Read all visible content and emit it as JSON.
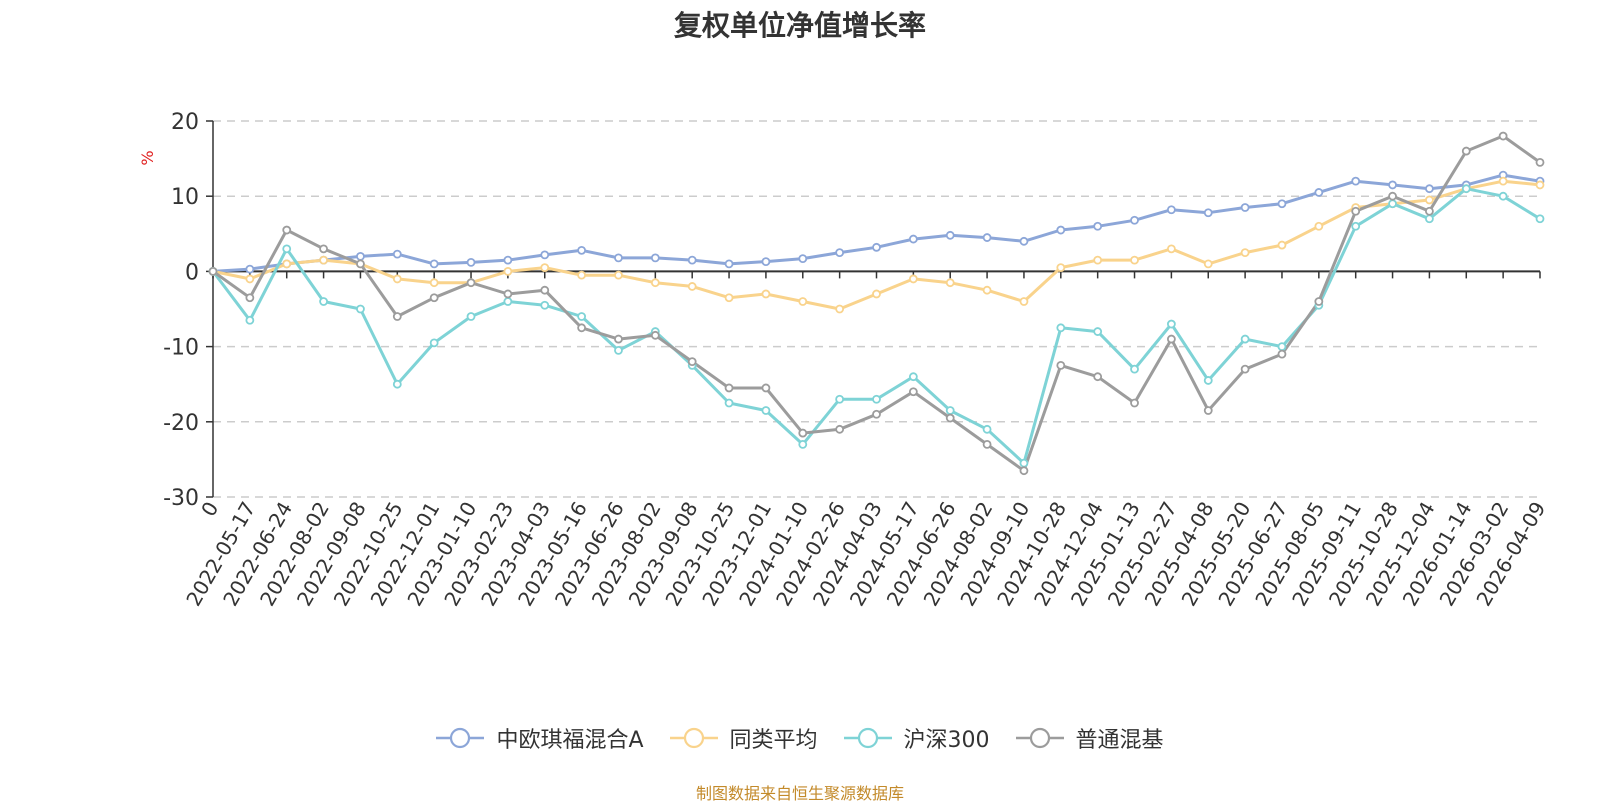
{
  "chart_data": {
    "type": "line",
    "title": "复权单位净值增长率",
    "ylabel": "%",
    "ylim": [
      -30,
      20
    ],
    "yticks": [
      -30,
      -20,
      -10,
      0,
      10,
      20
    ],
    "categories": [
      "0",
      "2022-05-17",
      "2022-06-24",
      "2022-08-02",
      "2022-09-08",
      "2022-10-25",
      "2022-12-01",
      "2023-01-10",
      "2023-02-23",
      "2023-04-03",
      "2023-05-16",
      "2023-06-26",
      "2023-08-02",
      "2023-09-08",
      "2023-10-25",
      "2023-12-01",
      "2024-01-10",
      "2024-02-26",
      "2024-04-03",
      "2024-05-17",
      "2024-06-26",
      "2024-08-02",
      "2024-09-10",
      "2024-10-28",
      "2024-12-04",
      "2025-01-13",
      "2025-02-27",
      "2025-04-08",
      "2025-05-20",
      "2025-06-27",
      "2025-08-05",
      "2025-09-11",
      "2025-10-28",
      "2025-12-04",
      "2026-01-14",
      "2026-03-02",
      "2026-04-09"
    ],
    "series": [
      {
        "name": "中欧琪福混合A",
        "color": "#8ca6d8",
        "values": [
          0,
          0.3,
          1.0,
          1.5,
          2.0,
          2.3,
          1.0,
          1.2,
          1.5,
          2.2,
          2.8,
          1.8,
          1.8,
          1.5,
          1.0,
          1.3,
          1.7,
          2.5,
          3.2,
          4.3,
          4.8,
          4.5,
          4.0,
          5.5,
          6.0,
          6.8,
          8.2,
          7.8,
          8.5,
          9.0,
          10.5,
          12.0,
          11.5,
          11.0,
          11.5,
          12.8,
          12.0
        ]
      },
      {
        "name": "同类平均",
        "color": "#f9d38c",
        "values": [
          0,
          -1.0,
          1.0,
          1.5,
          1.0,
          -1.0,
          -1.5,
          -1.5,
          0,
          0.5,
          -0.5,
          -0.5,
          -1.5,
          -2.0,
          -3.5,
          -3.0,
          -4.0,
          -5.0,
          -3.0,
          -1.0,
          -1.5,
          -2.5,
          -4.0,
          0.5,
          1.5,
          1.5,
          3.0,
          1.0,
          2.5,
          3.5,
          6.0,
          8.5,
          9.0,
          9.5,
          11.0,
          12.0,
          11.5
        ]
      },
      {
        "name": "沪深300",
        "color": "#7ed3d6",
        "values": [
          0,
          -6.5,
          3.0,
          -4.0,
          -5.0,
          -15.0,
          -9.5,
          -6.0,
          -4.0,
          -4.5,
          -6.0,
          -10.5,
          -8.0,
          -12.5,
          -17.5,
          -18.5,
          -23.0,
          -17.0,
          -17.0,
          -14.0,
          -18.5,
          -21.0,
          -25.5,
          -7.5,
          -8.0,
          -13.0,
          -7.0,
          -14.5,
          -9.0,
          -10.0,
          -4.5,
          6.0,
          9.0,
          7.0,
          11.0,
          10.0,
          7.0
        ]
      },
      {
        "name": "普通混基",
        "color": "#9c9c9c",
        "values": [
          0,
          -3.5,
          5.5,
          3.0,
          1.0,
          -6.0,
          -3.5,
          -1.5,
          -3.0,
          -2.5,
          -7.5,
          -9.0,
          -8.5,
          -12.0,
          -15.5,
          -15.5,
          -21.5,
          -21.0,
          -19.0,
          -16.0,
          -19.5,
          -23.0,
          -26.5,
          -12.5,
          -14.0,
          -17.5,
          -9.0,
          -18.5,
          -13.0,
          -11.0,
          -4.0,
          8.0,
          10.0,
          8.0,
          16.0,
          18.0,
          14.5
        ]
      }
    ]
  },
  "source_note": "制图数据来自恒生聚源数据库"
}
